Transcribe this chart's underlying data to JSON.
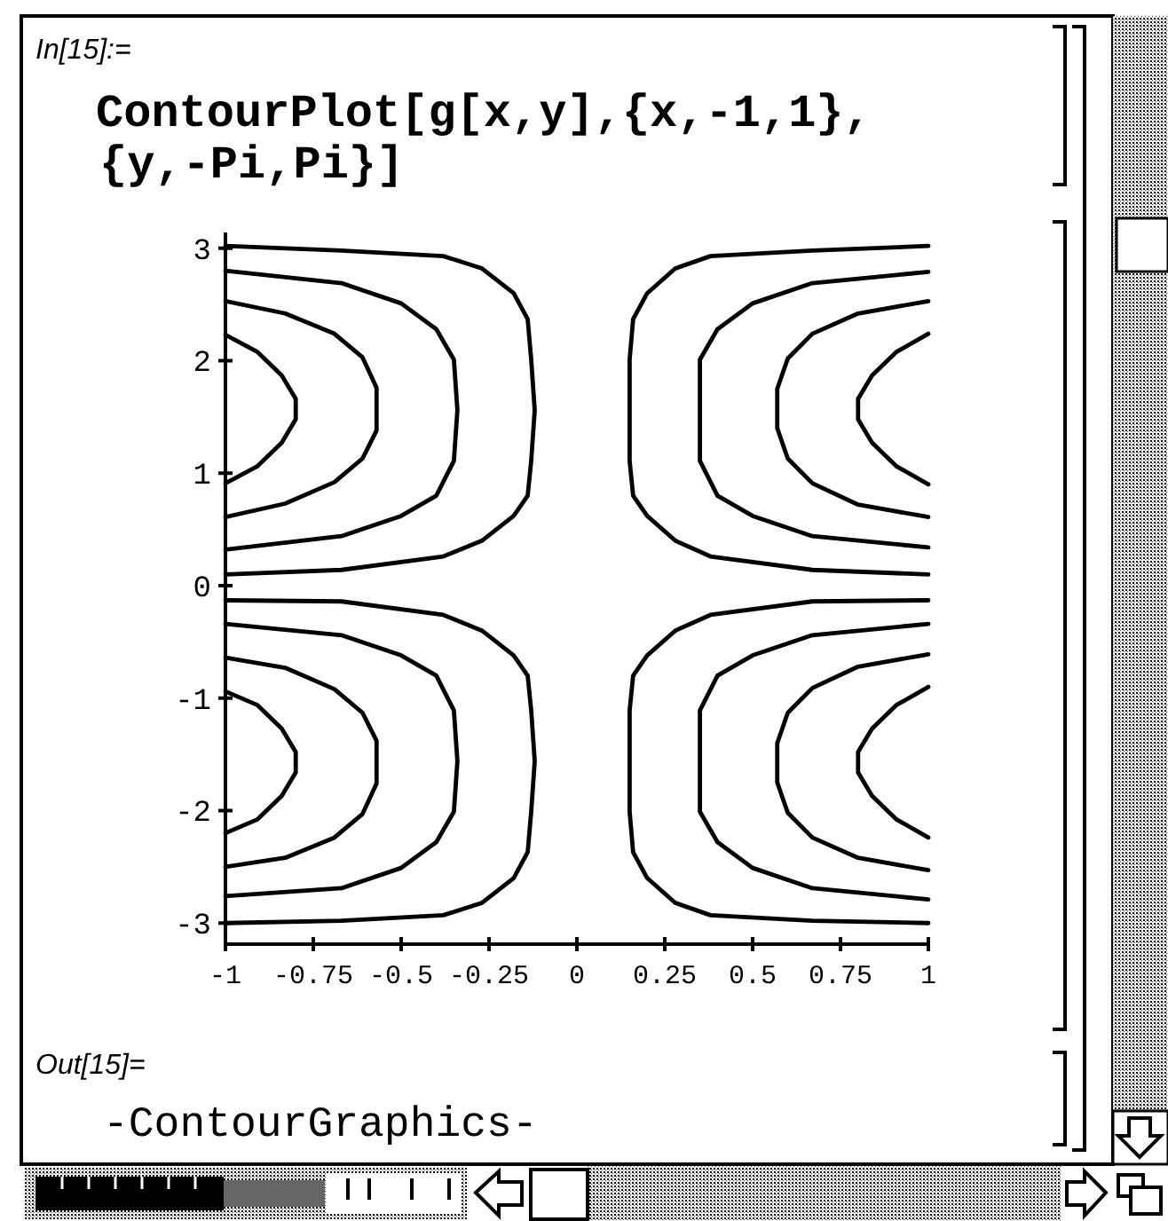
{
  "chart_data": {
    "type": "line",
    "xlim": [
      -1,
      1
    ],
    "ylim": [
      -3.14,
      3.14
    ],
    "xticks": [
      -1,
      -0.75,
      -0.5,
      -0.25,
      0,
      0.25,
      0.5,
      0.75,
      1
    ],
    "yticks": [
      -3,
      -2,
      -1,
      0,
      1,
      2,
      3
    ],
    "series": [
      {
        "color": "#000000",
        "x": [
          -1,
          -0.67,
          -0.38,
          -0.27,
          -0.18,
          -0.14,
          -0.13,
          -0.12,
          -0.13,
          -0.14,
          -0.18,
          -0.27,
          -0.38,
          -0.67,
          -1
        ],
        "values": [
          3.02,
          2.98,
          2.93,
          2.82,
          2.6,
          2.37,
          2.01,
          1.56,
          1.11,
          0.8,
          0.62,
          0.4,
          0.26,
          0.14,
          0.1
        ]
      },
      {
        "color": "#000000",
        "x": [
          -1,
          -0.67,
          -0.5,
          -0.4,
          -0.35,
          -0.34,
          -0.35,
          -0.4,
          -0.5,
          -0.67,
          -1
        ],
        "values": [
          2.8,
          2.69,
          2.51,
          2.28,
          2.01,
          1.56,
          1.11,
          0.8,
          0.62,
          0.44,
          0.32
        ]
      },
      {
        "color": "#000000",
        "x": [
          -1,
          -0.83,
          -0.69,
          -0.61,
          -0.57,
          -0.57,
          -0.61,
          -0.69,
          -0.83,
          -1
        ],
        "values": [
          2.53,
          2.42,
          2.24,
          2.03,
          1.76,
          1.38,
          1.13,
          0.92,
          0.73,
          0.61
        ]
      },
      {
        "color": "#000000",
        "x": [
          -1,
          -0.91,
          -0.84,
          -0.8,
          -0.8,
          -0.84,
          -0.91,
          -1
        ],
        "values": [
          2.23,
          2.08,
          1.87,
          1.66,
          1.48,
          1.27,
          1.06,
          0.91
        ]
      },
      {
        "color": "#000000",
        "x": [
          1,
          0.67,
          0.38,
          0.28,
          0.2,
          0.16,
          0.15,
          0.15,
          0.15,
          0.16,
          0.2,
          0.28,
          0.38,
          0.67,
          1
        ],
        "values": [
          3.02,
          2.98,
          2.93,
          2.82,
          2.6,
          2.37,
          2.01,
          1.56,
          1.11,
          0.8,
          0.62,
          0.4,
          0.26,
          0.14,
          0.1
        ]
      },
      {
        "color": "#000000",
        "x": [
          1,
          0.67,
          0.5,
          0.4,
          0.35,
          0.35,
          0.35,
          0.4,
          0.5,
          0.67,
          1
        ],
        "values": [
          2.79,
          2.69,
          2.51,
          2.28,
          2.01,
          1.56,
          1.11,
          0.8,
          0.62,
          0.44,
          0.34
        ]
      },
      {
        "color": "#000000",
        "x": [
          1,
          0.8,
          0.67,
          0.6,
          0.57,
          0.57,
          0.6,
          0.67,
          0.8,
          1
        ],
        "values": [
          2.53,
          2.42,
          2.24,
          2.02,
          1.75,
          1.4,
          1.13,
          0.91,
          0.72,
          0.61
        ]
      },
      {
        "color": "#000000",
        "x": [
          1,
          0.91,
          0.84,
          0.8,
          0.8,
          0.84,
          0.91,
          1
        ],
        "values": [
          2.24,
          2.08,
          1.87,
          1.66,
          1.48,
          1.27,
          1.06,
          0.9
        ]
      },
      {
        "color": "#000000",
        "x": [
          -1,
          -0.67,
          -0.38,
          -0.27,
          -0.18,
          -0.14,
          -0.13,
          -0.12,
          -0.13,
          -0.14,
          -0.18,
          -0.27,
          -0.38,
          -0.67,
          -1
        ],
        "values": [
          -0.13,
          -0.14,
          -0.26,
          -0.4,
          -0.62,
          -0.8,
          -1.11,
          -1.56,
          -2.01,
          -2.37,
          -2.6,
          -2.82,
          -2.93,
          -2.98,
          -3.0
        ]
      },
      {
        "color": "#000000",
        "x": [
          -1,
          -0.67,
          -0.5,
          -0.4,
          -0.35,
          -0.34,
          -0.35,
          -0.4,
          -0.5,
          -0.67,
          -1
        ],
        "values": [
          -0.34,
          -0.44,
          -0.62,
          -0.8,
          -1.11,
          -1.56,
          -2.01,
          -2.28,
          -2.51,
          -2.69,
          -2.76
        ]
      },
      {
        "color": "#000000",
        "x": [
          -1,
          -0.83,
          -0.69,
          -0.61,
          -0.57,
          -0.57,
          -0.61,
          -0.69,
          -0.83,
          -1
        ],
        "values": [
          -0.64,
          -0.73,
          -0.92,
          -1.13,
          -1.38,
          -1.76,
          -2.03,
          -2.24,
          -2.42,
          -2.5
        ]
      },
      {
        "color": "#000000",
        "x": [
          -1,
          -0.91,
          -0.84,
          -0.8,
          -0.8,
          -0.84,
          -0.91,
          -1
        ],
        "values": [
          -0.94,
          -1.06,
          -1.27,
          -1.48,
          -1.66,
          -1.87,
          -2.08,
          -2.2
        ]
      },
      {
        "color": "#000000",
        "x": [
          1,
          0.67,
          0.38,
          0.28,
          0.2,
          0.16,
          0.15,
          0.15,
          0.15,
          0.16,
          0.2,
          0.28,
          0.38,
          0.67,
          1
        ],
        "values": [
          -0.13,
          -0.14,
          -0.26,
          -0.4,
          -0.62,
          -0.8,
          -1.11,
          -1.56,
          -2.01,
          -2.37,
          -2.6,
          -2.82,
          -2.93,
          -2.98,
          -3.0
        ]
      },
      {
        "color": "#000000",
        "x": [
          1,
          0.67,
          0.5,
          0.4,
          0.35,
          0.35,
          0.35,
          0.4,
          0.5,
          0.67,
          1
        ],
        "values": [
          -0.34,
          -0.44,
          -0.62,
          -0.8,
          -1.11,
          -1.56,
          -2.01,
          -2.28,
          -2.51,
          -2.69,
          -2.79
        ]
      },
      {
        "color": "#000000",
        "x": [
          1,
          0.8,
          0.67,
          0.6,
          0.57,
          0.57,
          0.6,
          0.67,
          0.8,
          1
        ],
        "values": [
          -0.61,
          -0.72,
          -0.91,
          -1.13,
          -1.4,
          -1.75,
          -2.02,
          -2.24,
          -2.42,
          -2.53
        ]
      },
      {
        "color": "#000000",
        "x": [
          1,
          0.91,
          0.84,
          0.8,
          0.8,
          0.84,
          0.91,
          1
        ],
        "values": [
          -0.9,
          -1.06,
          -1.27,
          -1.48,
          -1.66,
          -1.87,
          -2.08,
          -2.24
        ]
      }
    ],
    "annotations": [
      "In[15]:=",
      "ContourPlot[g[x,y],{x,-1,1},",
      "{y,-Pi,Pi}]",
      "Out[15]=",
      "-ContourGraphics-"
    ]
  }
}
